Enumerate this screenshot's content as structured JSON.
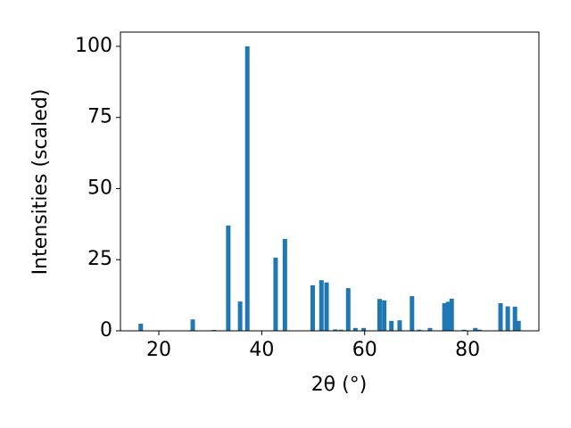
{
  "chart_data": {
    "type": "bar",
    "xlabel": "2θ (°)",
    "ylabel": "Intensities (scaled)",
    "color": "#1f77b4",
    "x": [
      16.5,
      26.6,
      30.7,
      33.5,
      35.8,
      37.2,
      42.7,
      44.5,
      49.9,
      51.6,
      52.6,
      54.3,
      55.4,
      56.8,
      58.2,
      59.8,
      62.9,
      63.8,
      65.2,
      66.8,
      69.2,
      70.6,
      72.7,
      75.5,
      76.2,
      76.9,
      79.3,
      81.5,
      82.3,
      86.4,
      87.8,
      89.2,
      89.9
    ],
    "values": [
      2.5,
      4,
      0.3,
      37,
      10.3,
      100,
      25.7,
      32.3,
      16,
      17.8,
      17,
      0.5,
      0.4,
      15,
      1,
      1,
      11.2,
      10.7,
      3.5,
      3.7,
      12.2,
      0.4,
      1,
      9.7,
      10.2,
      11.3,
      0.4,
      1,
      0.4,
      9.7,
      8.6,
      8.5,
      3.5
    ],
    "xlim": [
      12.55,
      93.85
    ],
    "ylim": [
      0,
      105
    ],
    "xticks": [
      20,
      40,
      60,
      80
    ],
    "yticks": [
      0,
      25,
      50,
      75,
      100
    ]
  }
}
